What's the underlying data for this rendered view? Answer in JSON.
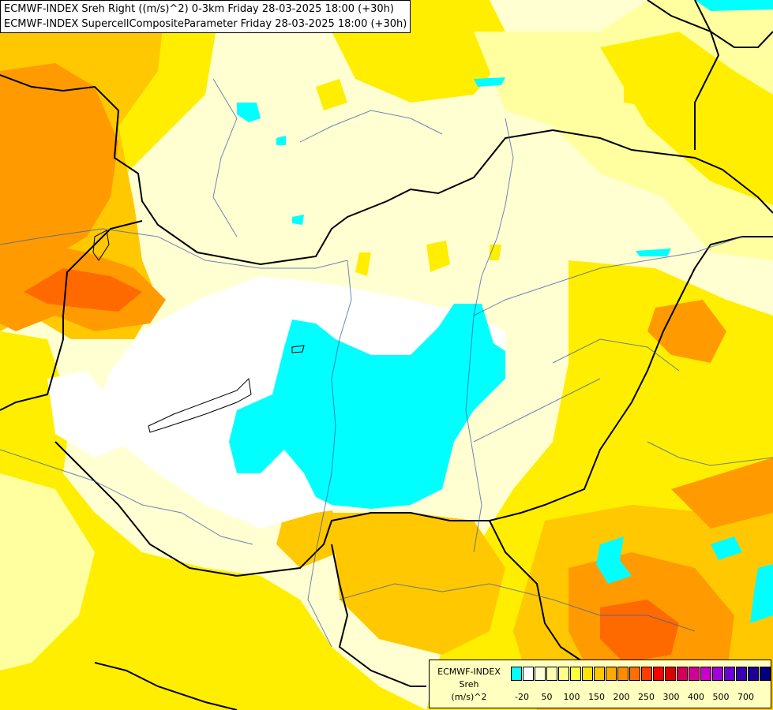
{
  "header": {
    "line1": "ECMWF-INDEX Sreh Right ((m/s)^2) 0-3km Friday 28-03-2025 18:00 (+30h)",
    "line2": "ECMWF-INDEX SupercellCompositeParameter Friday 28-03-2025 18:00 (+30h)"
  },
  "legend": {
    "line1": "ECMWF-INDEX",
    "line2": "Sreh",
    "line3": "(m/s)^2",
    "colors": [
      "#00ffff",
      "#ffffff",
      "#ffffdc",
      "#ffffb4",
      "#ffff8c",
      "#ffff3c",
      "#ffe600",
      "#ffc800",
      "#ffaa00",
      "#ff8c00",
      "#ff6e00",
      "#ff3c00",
      "#ff0000",
      "#dc0000",
      "#d2005a",
      "#d20096",
      "#c800c8",
      "#a000dc",
      "#6e00dc",
      "#3c00b4",
      "#1e0096",
      "#00007d"
    ],
    "ticks": [
      "-20",
      "50",
      "100",
      "150",
      "200",
      "250",
      "300",
      "400",
      "500",
      "700"
    ]
  },
  "colors": {
    "cyan": "#00ffff",
    "white": "#ffffff",
    "pale_yellow": "#ffffd2",
    "light_yellow": "#ffffa0",
    "yellow": "#ffee00",
    "gold": "#ffc800",
    "orange": "#ff9b00",
    "dark_orange": "#ff6a00",
    "red_orange": "#ff4a00"
  }
}
